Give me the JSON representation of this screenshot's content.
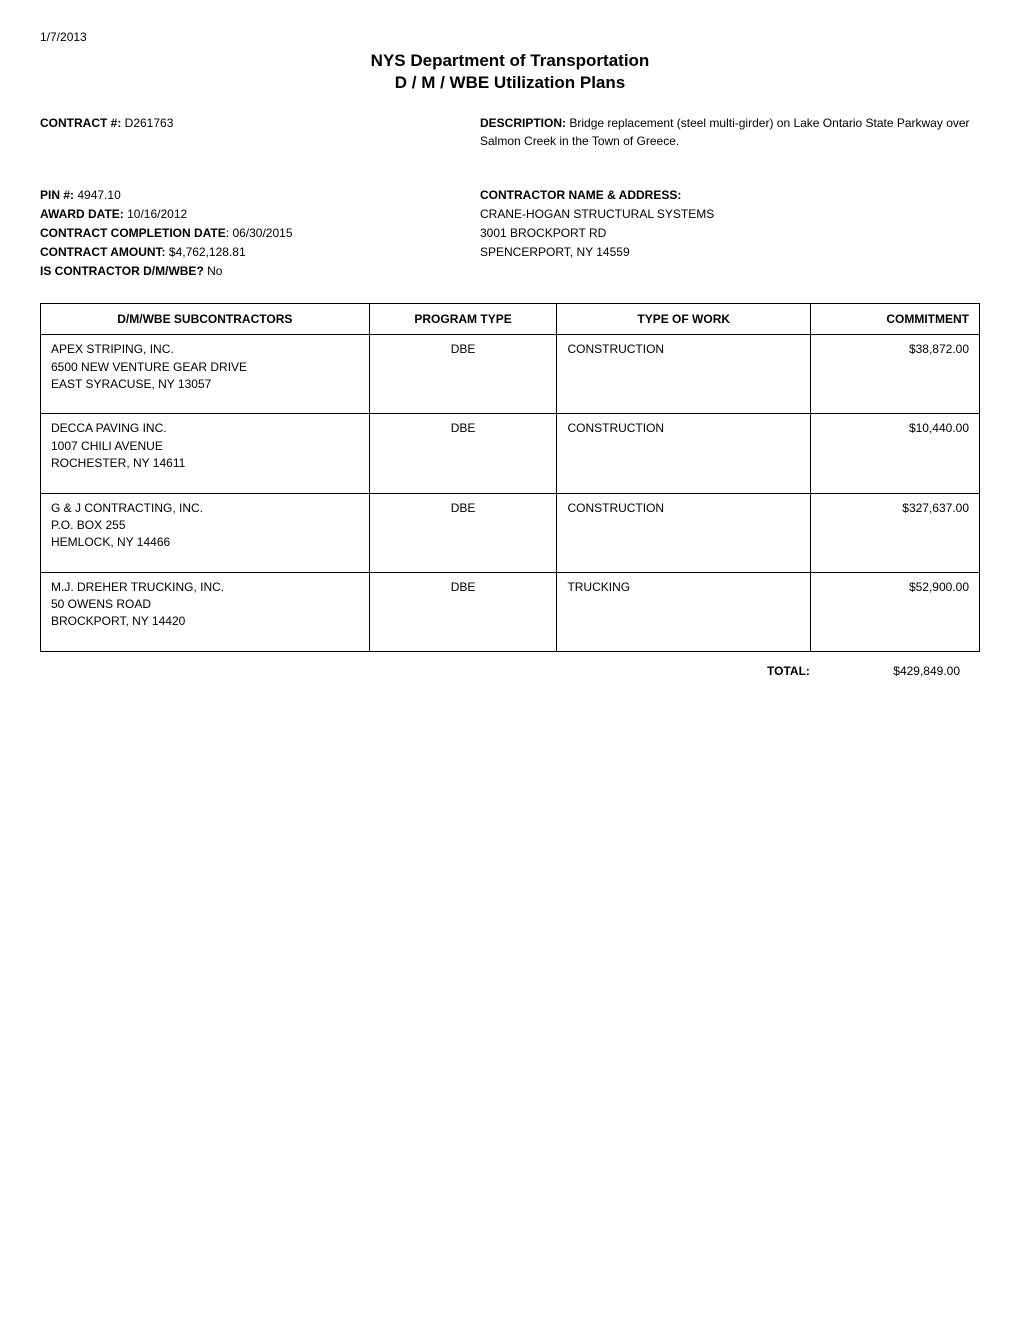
{
  "meta": {
    "date": "1/7/2013",
    "title_line1": "NYS Department of Transportation",
    "title_line2": "D / M / WBE Utilization Plans"
  },
  "contract": {
    "contract_label": "CONTRACT #:",
    "contract_number": "D261763",
    "description_label": "DESCRIPTION:",
    "description": "Bridge replacement (steel multi-girder) on Lake Ontario State Parkway over Salmon Creek in the Town of Greece.",
    "pin_label": "PIN #:",
    "pin": "4947.10",
    "award_date_label": "AWARD DATE:",
    "award_date": "10/16/2012",
    "completion_label": "CONTRACT COMPLETION DATE",
    "completion_date": "06/30/2015",
    "amount_label": "CONTRACT AMOUNT:",
    "amount": "$4,762,128.81",
    "is_dmwbe_label": "IS CONTRACTOR D/M/WBE?",
    "is_dmwbe": "No",
    "contractor_header": "CONTRACTOR NAME & ADDRESS:",
    "contractor_name": "CRANE-HOGAN STRUCTURAL SYSTEMS",
    "contractor_addr1": "3001 BROCKPORT RD",
    "contractor_addr2": "SPENCERPORT, NY 14559"
  },
  "table": {
    "headers": {
      "subcontractors": "D/M/WBE SUBCONTRACTORS",
      "program_type": "PROGRAM TYPE",
      "type_of_work": "TYPE OF WORK",
      "commitment": "COMMITMENT"
    },
    "rows": [
      {
        "name": "APEX STRIPING, INC.",
        "addr1": "6500 NEW VENTURE GEAR DRIVE",
        "addr2": "EAST SYRACUSE, NY 13057",
        "program_type": "DBE",
        "type_of_work": "CONSTRUCTION",
        "commitment": "$38,872.00"
      },
      {
        "name": "DECCA PAVING INC.",
        "addr1": "1007 CHILI AVENUE",
        "addr2": "ROCHESTER, NY 14611",
        "program_type": "DBE",
        "type_of_work": "CONSTRUCTION",
        "commitment": "$10,440.00"
      },
      {
        "name": "G & J CONTRACTING, INC.",
        "addr1": "P.O. BOX 255",
        "addr2": "HEMLOCK, NY 14466",
        "program_type": "DBE",
        "type_of_work": "CONSTRUCTION",
        "commitment": "$327,637.00"
      },
      {
        "name": "M.J. DREHER TRUCKING, INC.",
        "addr1": "50 OWENS ROAD",
        "addr2": "BROCKPORT, NY 14420",
        "program_type": "DBE",
        "type_of_work": "TRUCKING",
        "commitment": "$52,900.00"
      }
    ]
  },
  "total": {
    "label": "TOTAL:",
    "value": "$429,849.00"
  }
}
